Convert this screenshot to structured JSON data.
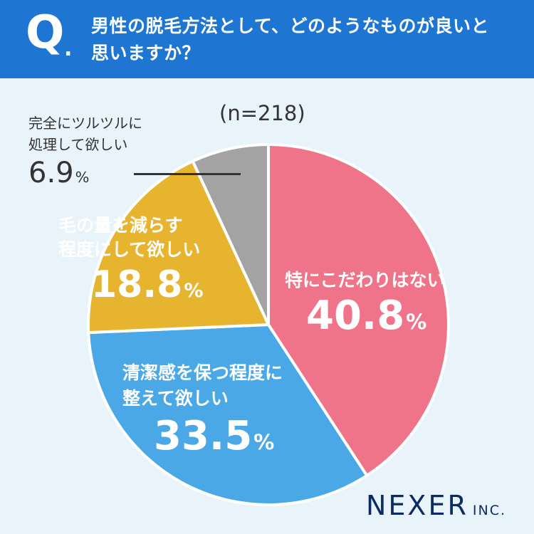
{
  "header": {
    "q_mark": "Q",
    "q_dot": ".",
    "question_line1": "男性の脱毛方法として、どのようなものが良いと",
    "question_line2": "思いますか？"
  },
  "chart_data": {
    "type": "pie",
    "sample": "(n=218)",
    "slices": [
      {
        "label_lines": [
          "特にこだわりはない"
        ],
        "value": 40.8,
        "color": "#f07489"
      },
      {
        "label_lines": [
          "清潔感を保つ程度に",
          "整えて欲しい"
        ],
        "value": 33.5,
        "color": "#4aa8e6"
      },
      {
        "label_lines": [
          "毛の量を減らす",
          "程度にして欲しい"
        ],
        "value": 18.8,
        "color": "#e7b430"
      },
      {
        "label_lines": [
          "完全にツルツルに",
          "処理して欲しい"
        ],
        "value": 6.9,
        "color": "#a3a3a3"
      }
    ],
    "value_unit": "%",
    "start_angle_deg": 0,
    "direction": "clockwise",
    "slice_border_color": "#ffffff"
  },
  "labels": {
    "pink": {
      "line1": "特にこだわりはない",
      "value": "40.8",
      "unit": "%"
    },
    "blue": {
      "line1": "清潔感を保つ程度に",
      "line2": "整えて欲しい",
      "value": "33.5",
      "unit": "%"
    },
    "yellow": {
      "line1": "毛の量を減らす",
      "line2": "程度にして欲しい",
      "value": "18.8",
      "unit": "%"
    },
    "gray": {
      "line1": "完全にツルツルに",
      "line2": "処理して欲しい",
      "value": "6.9",
      "unit": "%"
    }
  },
  "logo": {
    "main": "NEXER",
    "sub": "INC."
  }
}
